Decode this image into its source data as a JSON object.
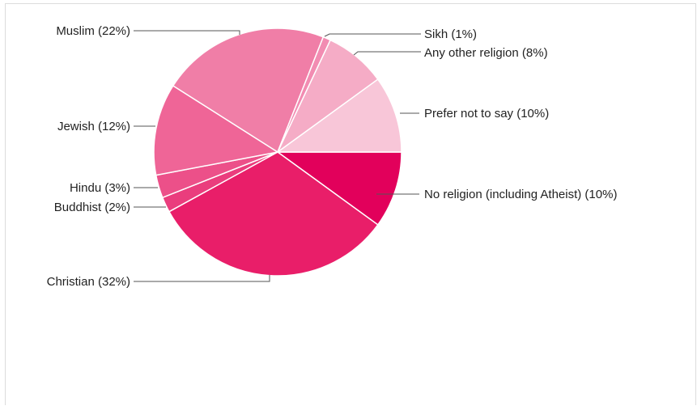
{
  "chart_data": {
    "type": "pie",
    "start_angle_deg": 90,
    "direction": "clockwise",
    "slices": [
      {
        "label": "No religion (including Atheist) (10%)",
        "value": 10,
        "color": "#e2005b"
      },
      {
        "label": "Christian (32%)",
        "value": 32,
        "color": "#e91e69"
      },
      {
        "label": "Buddhist (2%)",
        "value": 2,
        "color": "#ea3d7d"
      },
      {
        "label": "Hindu (3%)",
        "value": 3,
        "color": "#ec5089"
      },
      {
        "label": "Jewish (12%)",
        "value": 12,
        "color": "#ef6597"
      },
      {
        "label": "Muslim (22%)",
        "value": 22,
        "color": "#f07ea7"
      },
      {
        "label": "Sikh (1%)",
        "value": 1,
        "color": "#f28cb2"
      },
      {
        "label": "Any other religion (8%)",
        "value": 8,
        "color": "#f5acc6"
      },
      {
        "label": "Prefer not to say (10%)",
        "value": 10,
        "color": "#f8c6d8"
      }
    ],
    "legend": "labeled-leaders"
  }
}
